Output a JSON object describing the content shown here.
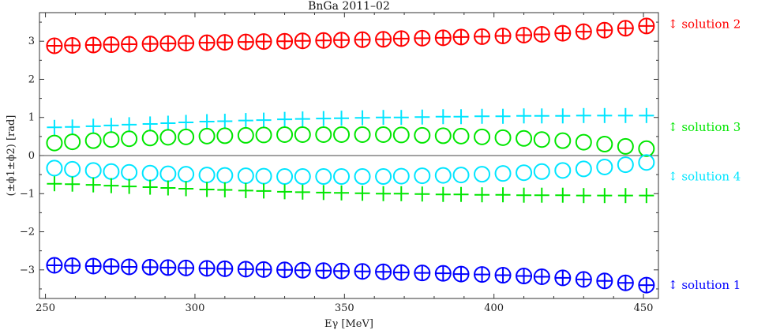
{
  "chart_data": {
    "type": "scatter",
    "title": "BnGa 2011–02",
    "xlabel": "Eγ [MeV]",
    "ylabel": "(±ϕ1±ϕ2) [rad]",
    "xlim": [
      248,
      455
    ],
    "ylim": [
      -3.75,
      3.75
    ],
    "xticks": [
      250,
      300,
      350,
      400,
      450
    ],
    "yticks": [
      -3,
      -2,
      -1,
      0,
      1,
      2,
      3
    ],
    "grid": false,
    "x": [
      253,
      259,
      266,
      272,
      278,
      285,
      291,
      297,
      304,
      310,
      317,
      323,
      330,
      336,
      343,
      349,
      356,
      363,
      369,
      376,
      383,
      389,
      396,
      403,
      410,
      416,
      423,
      430,
      437,
      444,
      451
    ],
    "series": [
      {
        "color": "#ff0000",
        "marker": "circle-plus",
        "values": [
          2.88,
          2.89,
          2.9,
          2.91,
          2.92,
          2.93,
          2.94,
          2.95,
          2.96,
          2.97,
          2.98,
          2.99,
          3.0,
          3.01,
          3.02,
          3.03,
          3.04,
          3.05,
          3.07,
          3.08,
          3.09,
          3.11,
          3.12,
          3.14,
          3.16,
          3.18,
          3.21,
          3.25,
          3.29,
          3.34,
          3.4
        ]
      },
      {
        "color": "#00e5ff",
        "marker": "plus",
        "values": [
          0.74,
          0.75,
          0.77,
          0.79,
          0.81,
          0.83,
          0.85,
          0.87,
          0.89,
          0.9,
          0.92,
          0.93,
          0.95,
          0.96,
          0.97,
          0.98,
          0.99,
          1.0,
          1.0,
          1.01,
          1.02,
          1.02,
          1.03,
          1.03,
          1.04,
          1.04,
          1.04,
          1.05,
          1.05,
          1.05,
          1.05
        ]
      },
      {
        "color": "#00e600",
        "marker": "circle",
        "values": [
          0.33,
          0.36,
          0.39,
          0.42,
          0.44,
          0.46,
          0.48,
          0.49,
          0.51,
          0.52,
          0.53,
          0.54,
          0.55,
          0.55,
          0.55,
          0.55,
          0.55,
          0.55,
          0.54,
          0.53,
          0.52,
          0.51,
          0.49,
          0.47,
          0.45,
          0.42,
          0.39,
          0.35,
          0.3,
          0.24,
          0.18
        ]
      },
      {
        "color": "#00e5ff",
        "marker": "circle",
        "values": [
          -0.33,
          -0.36,
          -0.39,
          -0.42,
          -0.44,
          -0.46,
          -0.48,
          -0.49,
          -0.51,
          -0.52,
          -0.53,
          -0.54,
          -0.55,
          -0.55,
          -0.55,
          -0.55,
          -0.55,
          -0.55,
          -0.54,
          -0.53,
          -0.52,
          -0.51,
          -0.49,
          -0.47,
          -0.45,
          -0.42,
          -0.39,
          -0.35,
          -0.3,
          -0.24,
          -0.18
        ]
      },
      {
        "color": "#00e600",
        "marker": "plus",
        "values": [
          -0.74,
          -0.75,
          -0.77,
          -0.79,
          -0.81,
          -0.83,
          -0.85,
          -0.87,
          -0.89,
          -0.9,
          -0.92,
          -0.93,
          -0.95,
          -0.96,
          -0.97,
          -0.98,
          -0.99,
          -1.0,
          -1.0,
          -1.01,
          -1.02,
          -1.02,
          -1.03,
          -1.03,
          -1.04,
          -1.04,
          -1.04,
          -1.05,
          -1.05,
          -1.05,
          -1.05
        ]
      },
      {
        "color": "#0000ff",
        "marker": "circle-plus",
        "values": [
          -2.88,
          -2.89,
          -2.9,
          -2.91,
          -2.92,
          -2.93,
          -2.94,
          -2.95,
          -2.96,
          -2.97,
          -2.98,
          -2.99,
          -3.0,
          -3.01,
          -3.02,
          -3.03,
          -3.04,
          -3.05,
          -3.07,
          -3.08,
          -3.09,
          -3.11,
          -3.12,
          -3.14,
          -3.16,
          -3.18,
          -3.21,
          -3.25,
          -3.29,
          -3.34,
          -3.4
        ]
      }
    ],
    "annotations": [
      {
        "text": "↕ solution 2",
        "y": 3.45,
        "color": "#ff0000"
      },
      {
        "text": "↕ solution 3",
        "y": 0.75,
        "color": "#00e600"
      },
      {
        "text": "↕ solution 4",
        "y": -0.55,
        "color": "#00e5ff"
      },
      {
        "text": "↕ solution 1",
        "y": -3.4,
        "color": "#0000ff"
      }
    ]
  }
}
